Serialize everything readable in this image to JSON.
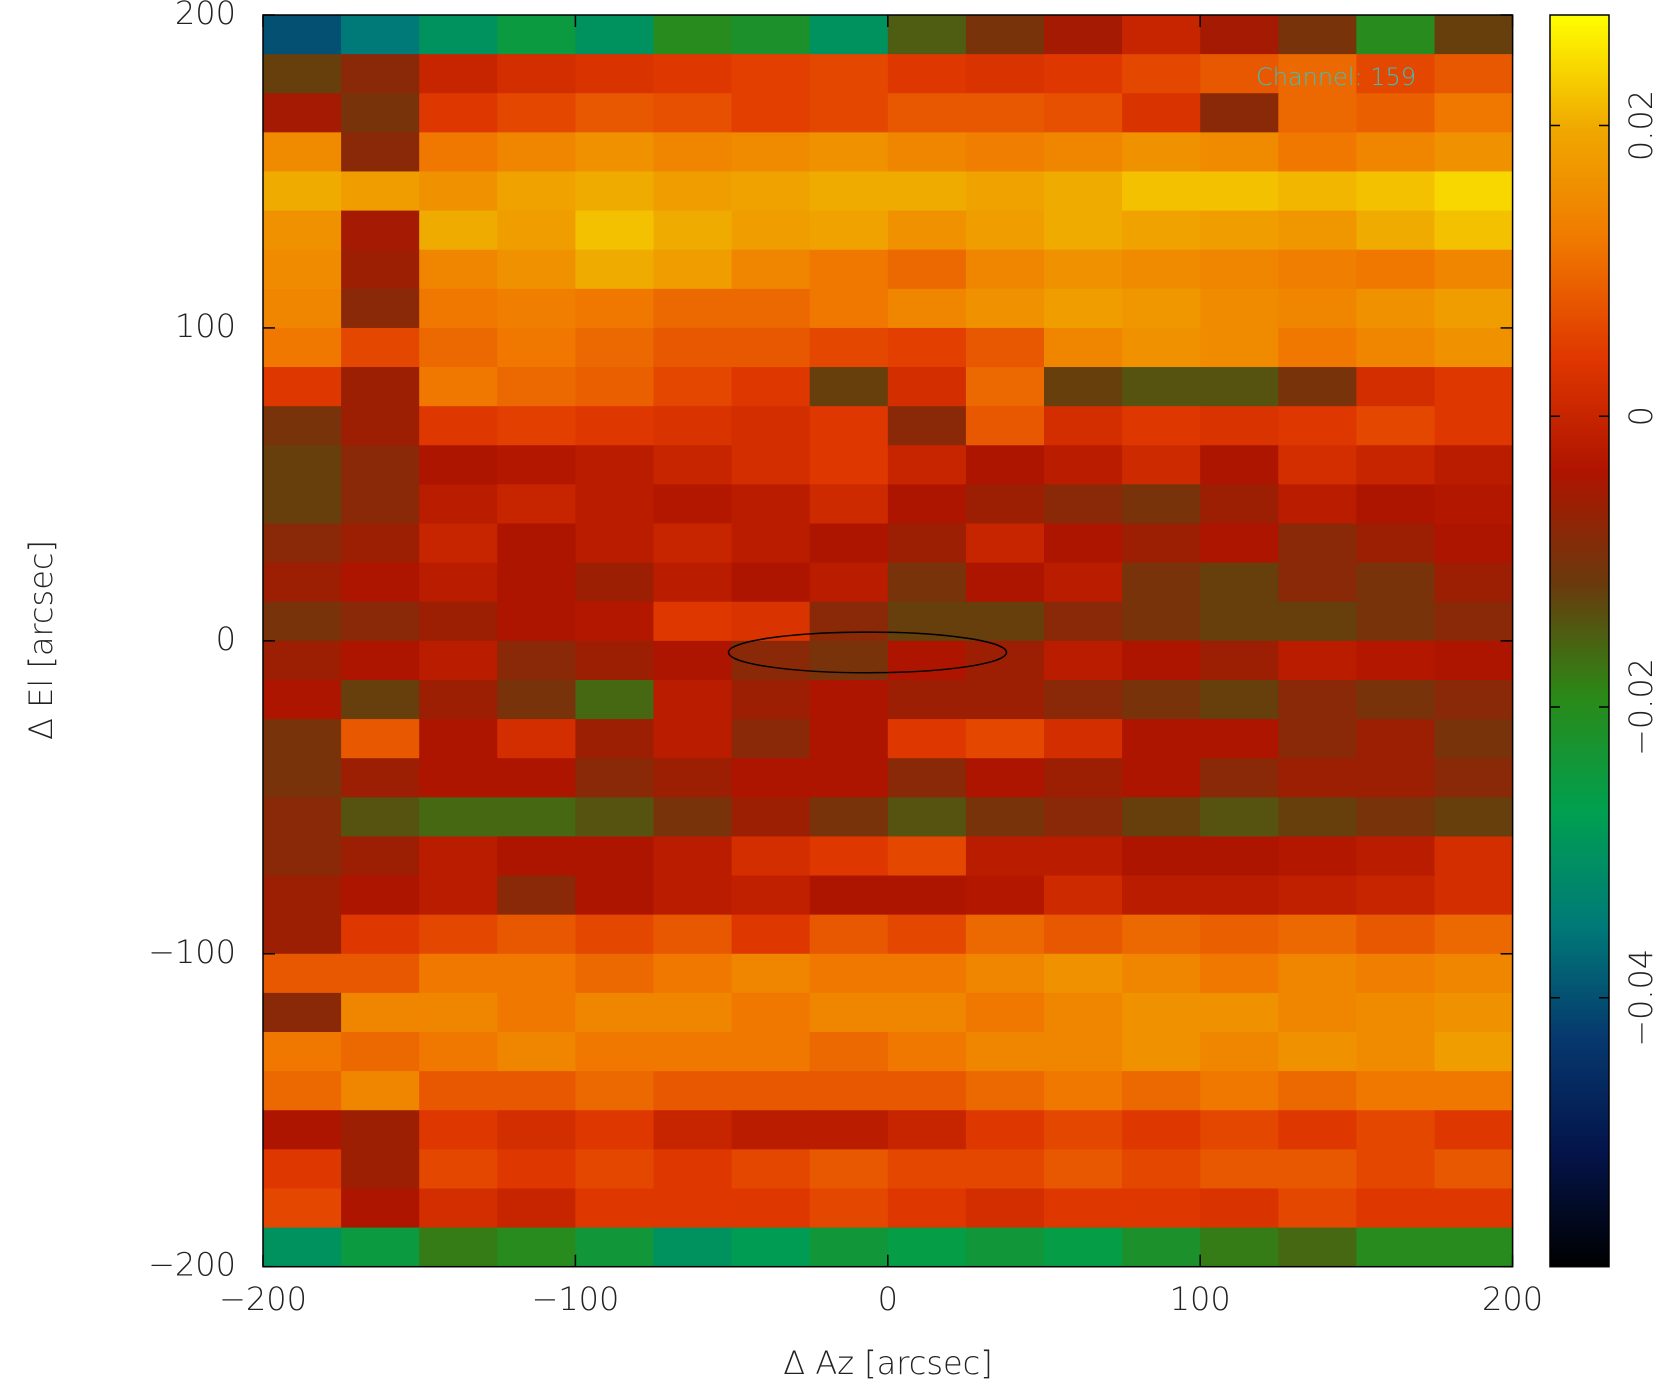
{
  "chart_data": {
    "type": "heatmap",
    "xlabel": "Δ Az [arcsec]",
    "ylabel": "Δ El [arcsec]",
    "annotation": "Channel: 159",
    "xlim": [
      -200,
      200
    ],
    "ylim": [
      -200,
      200
    ],
    "xticks": [
      {
        "value": -200,
        "label": "−200"
      },
      {
        "value": -100,
        "label": "−100"
      },
      0,
      100,
      200
    ],
    "yticks": [
      {
        "value": -200,
        "label": "−200"
      },
      {
        "value": -100,
        "label": "−100"
      },
      0,
      100,
      200
    ],
    "zlim": [
      -0.0585,
      0.0276
    ],
    "zticks": [
      {
        "value": -0.04,
        "label": "−0.04"
      },
      {
        "value": -0.02,
        "label": "−0.02"
      },
      0,
      0.02
    ],
    "colormap": [
      "#000000",
      "#04144a",
      "#06386e",
      "#007a78",
      "#00a050",
      "#2a8a18",
      "#6a3a0c",
      "#b01400",
      "#e03800",
      "#f07800",
      "#f0a800",
      "#ffff00"
    ],
    "beam": {
      "x": -6.5,
      "y": -3.7,
      "width": 89,
      "height": 13
    },
    "z": [
      [
        -0.04,
        -0.035,
        -0.03,
        -0.025,
        -0.03,
        -0.02,
        -0.022,
        -0.03,
        -0.015,
        -0.01,
        -0.005,
        0.0,
        -0.005,
        -0.01,
        -0.02,
        -0.012
      ],
      [
        -0.012,
        -0.008,
        0.0,
        0.002,
        0.003,
        0.004,
        0.005,
        0.006,
        0.004,
        0.003,
        0.004,
        0.006,
        0.008,
        0.01,
        0.006,
        0.008
      ],
      [
        -0.005,
        -0.01,
        0.004,
        0.006,
        0.008,
        0.007,
        0.005,
        0.006,
        0.008,
        0.008,
        0.007,
        0.003,
        -0.008,
        0.01,
        0.009,
        0.012
      ],
      [
        0.015,
        -0.008,
        0.012,
        0.014,
        0.016,
        0.014,
        0.015,
        0.016,
        0.014,
        0.013,
        0.014,
        0.016,
        0.015,
        0.012,
        0.014,
        0.016
      ],
      [
        0.02,
        0.018,
        0.016,
        0.019,
        0.02,
        0.018,
        0.019,
        0.02,
        0.02,
        0.019,
        0.02,
        0.022,
        0.022,
        0.021,
        0.022,
        0.024
      ],
      [
        0.016,
        -0.005,
        0.02,
        0.018,
        0.022,
        0.02,
        0.018,
        0.019,
        0.016,
        0.018,
        0.02,
        0.019,
        0.018,
        0.017,
        0.02,
        0.022
      ],
      [
        0.015,
        -0.006,
        0.014,
        0.016,
        0.02,
        0.018,
        0.014,
        0.012,
        0.01,
        0.014,
        0.016,
        0.015,
        0.014,
        0.013,
        0.012,
        0.014
      ],
      [
        0.014,
        -0.008,
        0.012,
        0.013,
        0.012,
        0.01,
        0.01,
        0.012,
        0.014,
        0.016,
        0.018,
        0.017,
        0.015,
        0.014,
        0.016,
        0.018
      ],
      [
        0.012,
        0.006,
        0.01,
        0.012,
        0.01,
        0.008,
        0.008,
        0.006,
        0.005,
        0.008,
        0.014,
        0.016,
        0.015,
        0.012,
        0.014,
        0.016
      ],
      [
        0.004,
        -0.006,
        0.012,
        0.01,
        0.009,
        0.006,
        0.004,
        -0.012,
        0.002,
        0.01,
        -0.012,
        -0.014,
        -0.014,
        -0.01,
        0.002,
        0.004
      ],
      [
        -0.01,
        -0.006,
        0.004,
        0.005,
        0.004,
        0.003,
        0.002,
        0.004,
        -0.008,
        0.008,
        0.002,
        0.004,
        0.003,
        0.004,
        0.006,
        0.004
      ],
      [
        -0.012,
        -0.008,
        -0.004,
        -0.003,
        -0.002,
        0.0,
        0.002,
        0.004,
        0.0,
        -0.004,
        -0.002,
        0.001,
        -0.004,
        0.002,
        0.0,
        -0.002
      ],
      [
        -0.012,
        -0.008,
        -0.002,
        0.0,
        -0.002,
        -0.003,
        -0.002,
        0.001,
        -0.004,
        -0.006,
        -0.008,
        -0.01,
        -0.006,
        -0.002,
        -0.004,
        -0.003
      ],
      [
        -0.008,
        -0.006,
        0.0,
        -0.004,
        -0.002,
        0.0,
        -0.002,
        -0.004,
        -0.006,
        0.0,
        -0.004,
        -0.006,
        -0.004,
        -0.008,
        -0.006,
        -0.004
      ],
      [
        -0.006,
        -0.004,
        -0.002,
        -0.004,
        -0.006,
        -0.002,
        -0.004,
        -0.002,
        -0.01,
        -0.004,
        -0.002,
        -0.01,
        -0.012,
        -0.008,
        -0.01,
        -0.006
      ],
      [
        -0.01,
        -0.008,
        -0.006,
        -0.004,
        -0.003,
        0.004,
        0.003,
        -0.008,
        -0.012,
        -0.012,
        -0.008,
        -0.01,
        -0.012,
        -0.012,
        -0.01,
        -0.008
      ],
      [
        -0.006,
        -0.004,
        -0.002,
        -0.008,
        -0.006,
        -0.004,
        -0.008,
        -0.01,
        -0.004,
        -0.006,
        -0.002,
        -0.004,
        -0.006,
        -0.002,
        -0.003,
        -0.004
      ],
      [
        -0.004,
        -0.012,
        -0.006,
        -0.01,
        -0.016,
        -0.002,
        -0.006,
        -0.004,
        -0.006,
        -0.006,
        -0.008,
        -0.01,
        -0.012,
        -0.008,
        -0.01,
        -0.008
      ],
      [
        -0.01,
        0.008,
        -0.004,
        0.002,
        -0.006,
        -0.002,
        -0.008,
        -0.004,
        0.004,
        0.006,
        0.002,
        -0.004,
        -0.004,
        -0.008,
        -0.006,
        -0.01
      ],
      [
        -0.01,
        -0.006,
        -0.004,
        -0.004,
        -0.008,
        -0.006,
        -0.004,
        -0.004,
        -0.008,
        -0.004,
        -0.006,
        -0.004,
        -0.008,
        -0.006,
        -0.006,
        -0.008
      ],
      [
        -0.008,
        -0.014,
        -0.016,
        -0.016,
        -0.014,
        -0.01,
        -0.006,
        -0.01,
        -0.014,
        -0.01,
        -0.008,
        -0.012,
        -0.014,
        -0.012,
        -0.01,
        -0.012
      ],
      [
        -0.008,
        -0.006,
        -0.002,
        -0.004,
        -0.004,
        -0.002,
        0.002,
        0.004,
        0.006,
        -0.002,
        -0.002,
        -0.004,
        -0.004,
        -0.003,
        -0.002,
        0.002
      ],
      [
        -0.006,
        -0.004,
        -0.002,
        -0.008,
        -0.004,
        -0.002,
        -0.001,
        -0.004,
        -0.004,
        -0.003,
        0.001,
        -0.002,
        -0.002,
        -0.001,
        0.0,
        0.002
      ],
      [
        -0.006,
        0.004,
        0.006,
        0.008,
        0.006,
        0.008,
        0.004,
        0.008,
        0.006,
        0.01,
        0.008,
        0.01,
        0.009,
        0.01,
        0.008,
        0.01
      ],
      [
        0.008,
        0.008,
        0.012,
        0.012,
        0.01,
        0.012,
        0.014,
        0.012,
        0.012,
        0.014,
        0.016,
        0.014,
        0.012,
        0.014,
        0.013,
        0.014
      ],
      [
        -0.008,
        0.014,
        0.014,
        0.012,
        0.014,
        0.014,
        0.012,
        0.014,
        0.014,
        0.012,
        0.014,
        0.016,
        0.016,
        0.014,
        0.015,
        0.016
      ],
      [
        0.012,
        0.01,
        0.012,
        0.014,
        0.012,
        0.012,
        0.012,
        0.01,
        0.012,
        0.014,
        0.014,
        0.016,
        0.014,
        0.016,
        0.015,
        0.018
      ],
      [
        0.01,
        0.014,
        0.008,
        0.008,
        0.01,
        0.008,
        0.008,
        0.008,
        0.008,
        0.01,
        0.012,
        0.01,
        0.012,
        0.01,
        0.012,
        0.012
      ],
      [
        -0.004,
        -0.006,
        0.004,
        0.002,
        0.004,
        0.0,
        -0.002,
        -0.002,
        0.0,
        0.004,
        0.006,
        0.004,
        0.006,
        0.004,
        0.006,
        0.004
      ],
      [
        0.004,
        -0.006,
        0.006,
        0.004,
        0.006,
        0.004,
        0.006,
        0.008,
        0.006,
        0.006,
        0.008,
        0.006,
        0.008,
        0.008,
        0.006,
        0.008
      ],
      [
        0.006,
        -0.004,
        0.002,
        0.0,
        0.004,
        0.004,
        0.004,
        0.006,
        0.004,
        0.002,
        0.004,
        0.004,
        0.003,
        0.006,
        0.004,
        0.004
      ],
      [
        -0.03,
        -0.025,
        -0.018,
        -0.02,
        -0.024,
        -0.03,
        -0.028,
        -0.024,
        -0.026,
        -0.024,
        -0.026,
        -0.022,
        -0.018,
        -0.016,
        -0.02,
        -0.02
      ]
    ]
  }
}
